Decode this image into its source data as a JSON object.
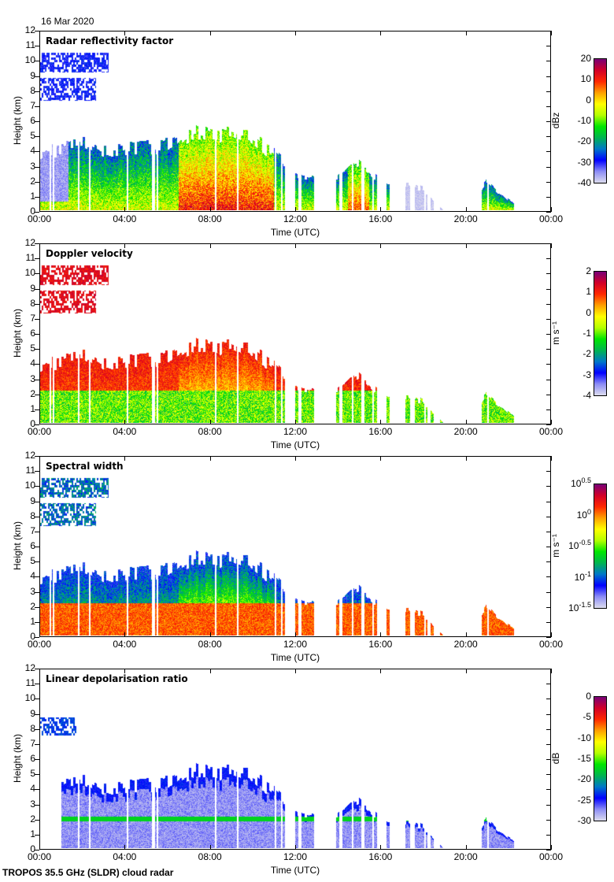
{
  "date": "16 Mar 2020",
  "footer": "TROPOS 35.5 GHz (SLDR) cloud radar",
  "chart_data": [
    {
      "type": "heatmap",
      "title": "Radar reflectivity factor",
      "xlabel": "Time (UTC)",
      "ylabel": "Height (km)",
      "xlim": [
        "00:00",
        "24:00"
      ],
      "ylim": [
        0,
        12
      ],
      "xticks": [
        "00:00",
        "04:00",
        "08:00",
        "12:00",
        "16:00",
        "20:00",
        "00:00"
      ],
      "yticks": [
        "0",
        "1",
        "2",
        "3",
        "4",
        "5",
        "6",
        "7",
        "8",
        "9",
        "10",
        "11",
        "12"
      ],
      "colorbar": {
        "unit": "dBz",
        "ticks": [
          "20",
          "10",
          "0",
          "-10",
          "-20",
          "-30",
          "-40"
        ],
        "range": [
          -40,
          20
        ]
      }
    },
    {
      "type": "heatmap",
      "title": "Doppler velocity",
      "xlabel": "Time (UTC)",
      "ylabel": "Height (km)",
      "xlim": [
        "00:00",
        "24:00"
      ],
      "ylim": [
        0,
        12
      ],
      "xticks": [
        "00:00",
        "04:00",
        "08:00",
        "12:00",
        "16:00",
        "20:00",
        "00:00"
      ],
      "yticks": [
        "0",
        "1",
        "2",
        "3",
        "4",
        "5",
        "6",
        "7",
        "8",
        "9",
        "10",
        "11",
        "12"
      ],
      "colorbar": {
        "unit": "m s⁻¹",
        "ticks": [
          "2",
          "1",
          "0",
          "-1",
          "-2",
          "-3",
          "-4"
        ],
        "range": [
          -4,
          2
        ]
      }
    },
    {
      "type": "heatmap",
      "title": "Spectral width",
      "xlabel": "Time (UTC)",
      "ylabel": "Height (km)",
      "xlim": [
        "00:00",
        "24:00"
      ],
      "ylim": [
        0,
        12
      ],
      "xticks": [
        "00:00",
        "04:00",
        "08:00",
        "12:00",
        "16:00",
        "20:00",
        "00:00"
      ],
      "yticks": [
        "0",
        "1",
        "2",
        "3",
        "4",
        "5",
        "6",
        "7",
        "8",
        "9",
        "10",
        "11",
        "12"
      ],
      "colorbar": {
        "unit": "m s⁻¹",
        "ticks": [
          "10^0.5",
          "",
          "10^0",
          "",
          "10^-0.5",
          "",
          "10^-1",
          "",
          "10^-1.5"
        ],
        "range": [
          -1.5,
          0.5
        ],
        "log": true
      }
    },
    {
      "type": "heatmap",
      "title": "Linear depolarisation ratio",
      "xlabel": "Time (UTC)",
      "ylabel": "Height (km)",
      "xlim": [
        "00:00",
        "24:00"
      ],
      "ylim": [
        0,
        12
      ],
      "xticks": [
        "00:00",
        "04:00",
        "08:00",
        "12:00",
        "16:00",
        "20:00",
        "00:00"
      ],
      "yticks": [
        "0",
        "1",
        "2",
        "3",
        "4",
        "5",
        "6",
        "7",
        "8",
        "9",
        "10",
        "11",
        "12"
      ],
      "colorbar": {
        "unit": "dB",
        "ticks": [
          "0",
          "-5",
          "-10",
          "-15",
          "-20",
          "-25",
          "-30"
        ],
        "range": [
          -30,
          0
        ]
      }
    }
  ],
  "echo_top_km_hourly": [
    4,
    4.3,
    4.6,
    4.1,
    4.2,
    4.3,
    4.5,
    5.3,
    5.1,
    5.3,
    4.9,
    3.9,
    2.5,
    2.2,
    2.4,
    3.2,
    2.1,
    2.0,
    1.5,
    0,
    0,
    2.0,
    0.8,
    0
  ],
  "upper_cloud": {
    "time_h": [
      0,
      3.2
    ],
    "height_km": [
      7.3,
      10.6
    ]
  },
  "colormap": [
    "#dcdcee",
    "#8c8cf5",
    "#0000ff",
    "#0078c8",
    "#00b450",
    "#00e600",
    "#b4ff00",
    "#ffff00",
    "#ffa000",
    "#ff2800",
    "#d20028",
    "#780078"
  ]
}
